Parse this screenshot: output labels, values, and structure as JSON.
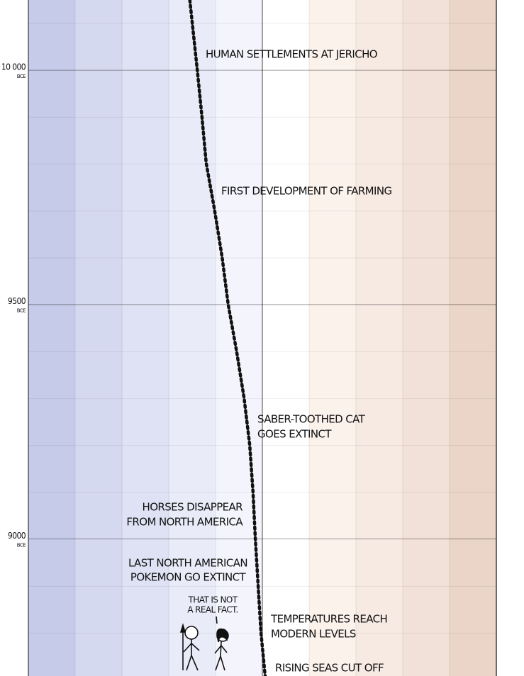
{
  "chart_data": {
    "type": "line",
    "ylim": [
      10150,
      8707
    ],
    "yticks": [
      {
        "value": 10000,
        "label": "10 000"
      },
      9500,
      9000
    ],
    "ytick_unit": "BCE",
    "xlim": [
      -5,
      5
    ],
    "grid": true,
    "series": [
      {
        "color": "#111111",
        "x": [
          10150,
          10000,
          9900,
          9802,
          9701,
          9601,
          9500,
          9400,
          9300,
          9200,
          9100,
          9000,
          8900,
          8800,
          8707
        ],
        "values": [
          -1.55,
          -1.39,
          -1.29,
          -1.2,
          -1.02,
          -0.86,
          -0.73,
          -0.55,
          -0.39,
          -0.27,
          -0.2,
          -0.15,
          -0.09,
          -0.03,
          0.06
        ]
      }
    ],
    "annotations": [
      {
        "lines": [
          "HUMAN SETTLEMENTS AT JERICHO"
        ]
      },
      {
        "lines": [
          "FIRST DEVELOPMENT OF FARMING"
        ]
      },
      {
        "lines": [
          "SABER-TOOTHED CAT",
          "GOES EXTINCT"
        ]
      },
      {
        "lines": [
          "HORSES DISAPPEAR",
          "FROM NORTH AMERICA"
        ]
      },
      {
        "lines": [
          "LAST NORTH AMERICAN",
          "POKEMON GO EXTINCT"
        ]
      },
      {
        "lines": [
          "THAT IS NOT",
          "A REAL FACT."
        ]
      },
      {
        "lines": [
          "TEMPERATURES REACH",
          "MODERN LEVELS"
        ]
      },
      {
        "lines": [
          "RISING SEAS CUT OFF"
        ]
      }
    ]
  }
}
